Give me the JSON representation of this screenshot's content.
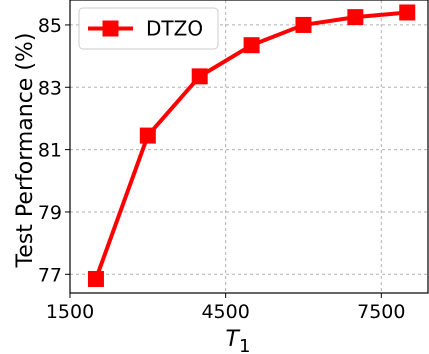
{
  "chart_data": {
    "type": "line",
    "title": "",
    "xlabel": "T",
    "xlabel_subscript": "1",
    "ylabel": "Test Performance (%)",
    "xlim": [
      1500,
      8400
    ],
    "ylim": [
      76.4,
      85.8
    ],
    "xticks": [
      1500,
      4500,
      7500
    ],
    "yticks": [
      77,
      79,
      81,
      83,
      85
    ],
    "grid": true,
    "legend_position": "top-left",
    "series": [
      {
        "name": "DTZO",
        "color": "#ff0000",
        "marker": "square",
        "x": [
          2000,
          3000,
          4000,
          5000,
          6000,
          7000,
          8000
        ],
        "y": [
          76.85,
          81.45,
          83.35,
          84.35,
          85.0,
          85.25,
          85.4
        ]
      }
    ]
  }
}
